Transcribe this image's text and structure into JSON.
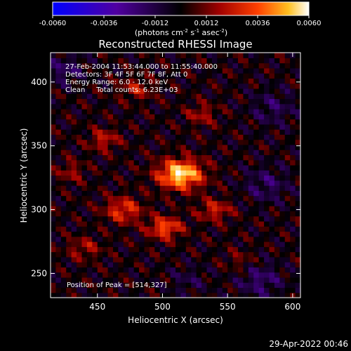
{
  "colorbar": {
    "ticks": [
      "-0.0060",
      "-0.0036",
      "-0.0012",
      "0.0012",
      "0.0036",
      "0.0060"
    ],
    "range": [
      -0.006,
      0.006
    ],
    "units_main": "(photons cm",
    "units_exp1": "-2",
    "units_mid": " s",
    "units_exp2": "-1",
    "units_mid2": " asec",
    "units_exp3": "-2",
    "units_end": ")"
  },
  "annotations": {
    "line1": "27-Feb-2004 11:53:44.000 to 11:55:40.000",
    "line2": "Detectors: 3F 4F 5F 6F 7F 8F, Att 0",
    "line3": "Energy Range: 6.0 - 12.0 keV",
    "line4": "Clean     Total counts: 6.23E+03",
    "peak": "Position of Peak = [514,327]"
  },
  "footer": {
    "timestamp": "29-Apr-2022 00:46"
  },
  "chart_data": {
    "type": "heatmap",
    "title": "Reconstructed RHESSI Image",
    "xlabel": "Heliocentric X (arcsec)",
    "ylabel": "Heliocentric Y (arcsec)",
    "xlim": [
      414,
      606
    ],
    "ylim": [
      231,
      423
    ],
    "xticks": [
      450,
      500,
      550,
      600
    ],
    "yticks": [
      250,
      300,
      350,
      400
    ],
    "colorscale": [
      "#0000ff",
      "#5000a0",
      "#000000",
      "#a00000",
      "#ff4000",
      "#ffc020",
      "#ffffff"
    ],
    "peak_position": [
      514,
      327
    ],
    "sources": [
      {
        "x": 514,
        "y": 328,
        "amp": 0.0058,
        "sx": 12,
        "sy": 8
      },
      {
        "x": 502,
        "y": 286,
        "amp": 0.0036,
        "sx": 9,
        "sy": 6
      },
      {
        "x": 470,
        "y": 300,
        "amp": 0.003,
        "sx": 10,
        "sy": 7
      },
      {
        "x": 540,
        "y": 300,
        "amp": 0.0024,
        "sx": 9,
        "sy": 6
      },
      {
        "x": 455,
        "y": 355,
        "amp": 0.0022,
        "sx": 8,
        "sy": 6
      },
      {
        "x": 480,
        "y": 395,
        "amp": 0.002,
        "sx": 9,
        "sy": 6
      },
      {
        "x": 530,
        "y": 375,
        "amp": 0.0018,
        "sx": 8,
        "sy": 6
      },
      {
        "x": 440,
        "y": 270,
        "amp": 0.0018,
        "sx": 9,
        "sy": 6
      },
      {
        "x": 430,
        "y": 330,
        "amp": 0.0016,
        "sx": 7,
        "sy": 6
      },
      {
        "x": 560,
        "y": 260,
        "amp": 0.0012,
        "sx": 8,
        "sy": 6
      },
      {
        "x": 580,
        "y": 320,
        "amp": -0.0016,
        "sx": 12,
        "sy": 10
      },
      {
        "x": 585,
        "y": 380,
        "amp": -0.0014,
        "sx": 12,
        "sy": 10
      },
      {
        "x": 425,
        "y": 410,
        "amp": -0.0016,
        "sx": 10,
        "sy": 8
      },
      {
        "x": 575,
        "y": 245,
        "amp": -0.0018,
        "sx": 12,
        "sy": 10
      },
      {
        "x": 520,
        "y": 245,
        "amp": -0.001,
        "sx": 10,
        "sy": 8
      }
    ],
    "ripple_amplitude": 0.0014
  }
}
